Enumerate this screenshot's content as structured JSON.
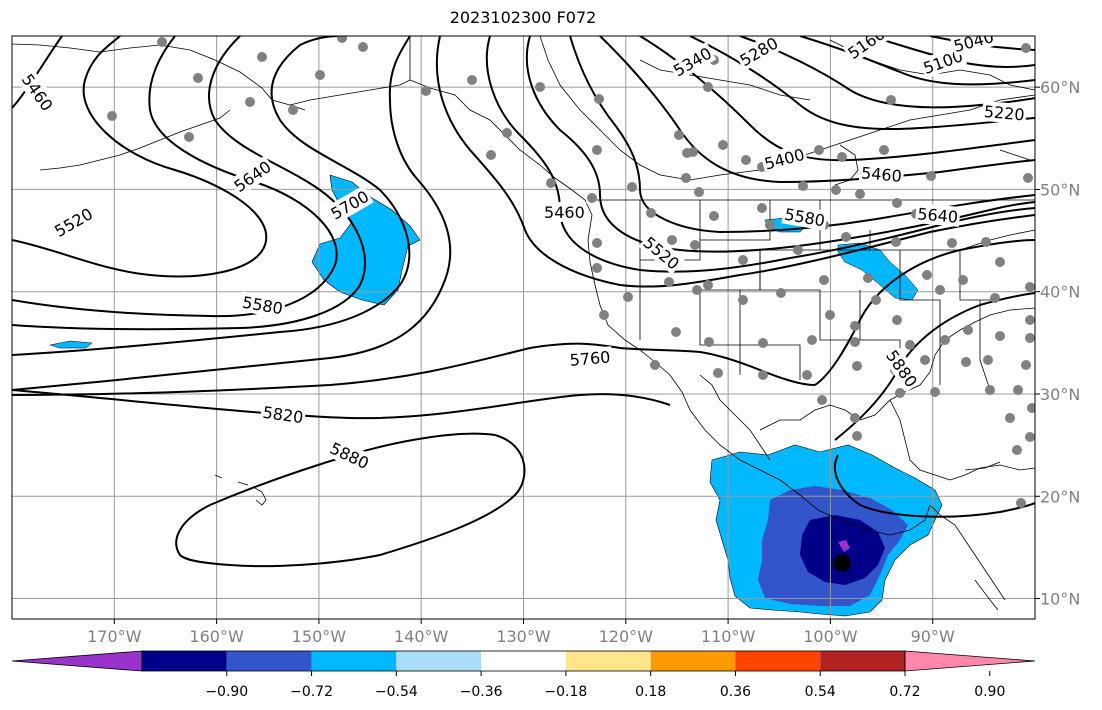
{
  "title": "2023102300 F072",
  "map": {
    "lon_min": -180,
    "lon_max": -80,
    "lat_min": 8,
    "lat_max": 65,
    "lon_ticks": [
      {
        "lon": -170,
        "label": "170°W"
      },
      {
        "lon": -160,
        "label": "160°W"
      },
      {
        "lon": -150,
        "label": "150°W"
      },
      {
        "lon": -140,
        "label": "140°W"
      },
      {
        "lon": -130,
        "label": "130°W"
      },
      {
        "lon": -120,
        "label": "120°W"
      },
      {
        "lon": -110,
        "label": "110°W"
      },
      {
        "lon": -100,
        "label": "100°W"
      },
      {
        "lon": -90,
        "label": "90°W"
      }
    ],
    "lat_ticks": [
      {
        "lat": 10,
        "label": "10°N"
      },
      {
        "lat": 20,
        "label": "20°N"
      },
      {
        "lat": 30,
        "label": "30°N"
      },
      {
        "lat": 40,
        "label": "40°N"
      },
      {
        "lat": 50,
        "label": "50°N"
      },
      {
        "lat": 60,
        "label": "60°N"
      }
    ],
    "grid": true
  },
  "contour_labels": [
    {
      "text": "5460",
      "lon": -177.5,
      "lat": 59.5,
      "angle": -55
    },
    {
      "text": "5520",
      "lon": -174,
      "lat": 46.8,
      "angle": 30
    },
    {
      "text": "5580",
      "lon": -155.5,
      "lat": 38.7,
      "angle": -10
    },
    {
      "text": "5640",
      "lon": -156.5,
      "lat": 51.3,
      "angle": 35
    },
    {
      "text": "5700",
      "lon": -147,
      "lat": 48.5,
      "angle": 30
    },
    {
      "text": "5760",
      "lon": -123.5,
      "lat": 33.5,
      "angle": 5
    },
    {
      "text": "5820",
      "lon": -153.5,
      "lat": 28,
      "angle": -8
    },
    {
      "text": "5880",
      "lon": -147,
      "lat": 24,
      "angle": -25
    },
    {
      "text": "5460",
      "lon": -126,
      "lat": 47.8,
      "angle": 0
    },
    {
      "text": "5520",
      "lon": -116.5,
      "lat": 43.8,
      "angle": -40
    },
    {
      "text": "5340",
      "lon": -113.5,
      "lat": 62.5,
      "angle": 30
    },
    {
      "text": "5280",
      "lon": -107,
      "lat": 63.5,
      "angle": 30
    },
    {
      "text": "5160",
      "lon": -96.5,
      "lat": 64.3,
      "angle": 35
    },
    {
      "text": "5100",
      "lon": -89,
      "lat": 62.5,
      "angle": 20
    },
    {
      "text": "5040",
      "lon": -86,
      "lat": 64.5,
      "angle": 15
    },
    {
      "text": "5220",
      "lon": -83,
      "lat": 57.5,
      "angle": -5
    },
    {
      "text": "5400",
      "lon": -104.5,
      "lat": 53,
      "angle": 15
    },
    {
      "text": "5460",
      "lon": -95,
      "lat": 51.5,
      "angle": -5
    },
    {
      "text": "5580",
      "lon": -102.5,
      "lat": 47.3,
      "angle": -10
    },
    {
      "text": "5640",
      "lon": -89.5,
      "lat": 47.5,
      "angle": -5
    },
    {
      "text": "5880",
      "lon": -93,
      "lat": 32.5,
      "angle": -55
    }
  ],
  "colorbar": {
    "ticks": [
      "−0.90",
      "−0.72",
      "−0.54",
      "−0.36",
      "−0.18",
      "0.18",
      "0.36",
      "0.54",
      "0.72",
      "0.90"
    ],
    "colors": [
      "#9933cc",
      "#000088",
      "#3355cc",
      "#00b8ff",
      "#aaddf8",
      "#ffffff",
      "#ffe68c",
      "#ff9900",
      "#ff4400",
      "#b22222",
      "#ff88aa"
    ]
  },
  "fill_colors": {
    "light_blue": "#00b8ff",
    "mid_blue": "#3355cc",
    "dark_blue": "#000088",
    "purple": "#9933cc"
  },
  "station_color": "#808080"
}
